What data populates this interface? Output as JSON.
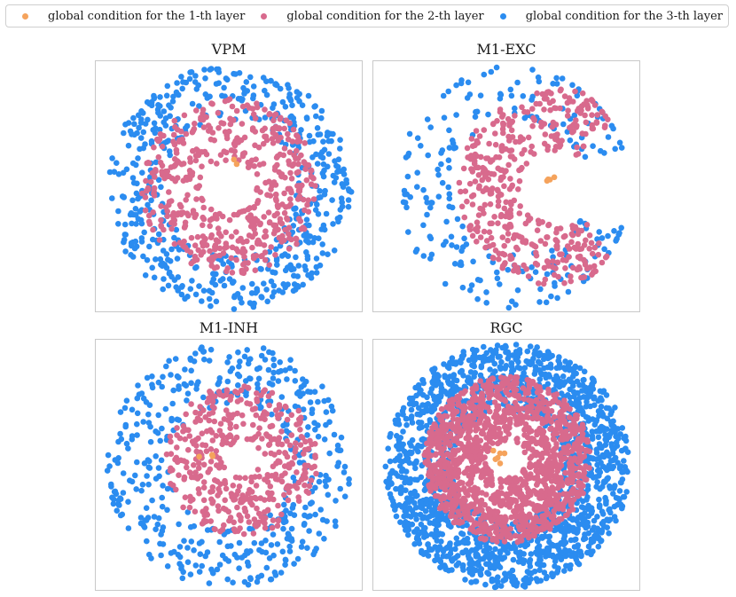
{
  "colors": {
    "layer1": "#f5a35c",
    "layer2": "#d86a8d",
    "layer3": "#2b8cf0"
  },
  "legend": [
    {
      "label": "global condition for the 1-th layer",
      "color_key": "layer1"
    },
    {
      "label": "global condition for the 2-th layer",
      "color_key": "layer2"
    },
    {
      "label": "global condition for the 3-th layer",
      "color_key": "layer3"
    }
  ],
  "chart_data": [
    {
      "type": "scatter",
      "title": "VPM",
      "xlim": [
        -1,
        1
      ],
      "ylim": [
        -1,
        1
      ],
      "grid": false,
      "series": [
        {
          "name": "global condition for the 1-th layer",
          "color_key": "layer1",
          "center": [
            0.0,
            0.18
          ],
          "count": 2,
          "r_min": 0.0,
          "r_max": 0.06,
          "angle_start": 0,
          "angle_end": 360
        },
        {
          "name": "global condition for the 2-th layer",
          "color_key": "layer2",
          "center": [
            0.0,
            0.0
          ],
          "count": 520,
          "r_min": 0.22,
          "r_max": 0.72,
          "angle_start": 0,
          "angle_end": 360
        },
        {
          "name": "global condition for the 3-th layer",
          "color_key": "layer3",
          "center": [
            0.0,
            0.0
          ],
          "count": 560,
          "r_min": 0.55,
          "r_max": 1.0,
          "angle_start": 0,
          "angle_end": 360
        }
      ]
    },
    {
      "type": "scatter",
      "title": "M1-EXC",
      "xlim": [
        -1,
        1
      ],
      "ylim": [
        -1,
        1
      ],
      "grid": false,
      "series": [
        {
          "name": "global condition for the 1-th layer",
          "color_key": "layer1",
          "center": [
            0.38,
            0.05
          ],
          "count": 4,
          "r_min": 0.0,
          "r_max": 0.06,
          "angle_start": 0,
          "angle_end": 360
        },
        {
          "name": "global condition for the 2-th layer",
          "color_key": "layer2",
          "center": [
            0.4,
            0.0
          ],
          "count": 430,
          "r_min": 0.3,
          "r_max": 0.8,
          "angle_start": 50,
          "angle_end": 310
        },
        {
          "name": "global condition for the 3-th layer",
          "color_key": "layer3",
          "center": [
            0.1,
            0.0
          ],
          "count": 220,
          "r_min": 0.55,
          "r_max": 1.0,
          "angle_start": 20,
          "angle_end": 340
        }
      ]
    },
    {
      "type": "scatter",
      "title": "M1-INH",
      "xlim": [
        -1,
        1
      ],
      "ylim": [
        -1,
        1
      ],
      "grid": false,
      "series": [
        {
          "name": "global condition for the 1-th layer",
          "color_key": "layer1",
          "center": [
            -0.2,
            0.05
          ],
          "count": 3,
          "r_min": 0.0,
          "r_max": 0.07,
          "angle_start": 0,
          "angle_end": 360
        },
        {
          "name": "global condition for the 2-th layer",
          "color_key": "layer2",
          "center": [
            0.1,
            0.05
          ],
          "count": 420,
          "r_min": 0.15,
          "r_max": 0.62,
          "angle_start": 0,
          "angle_end": 360
        },
        {
          "name": "global condition for the 3-th layer",
          "color_key": "layer3",
          "center": [
            0.0,
            0.0
          ],
          "count": 460,
          "r_min": 0.5,
          "r_max": 1.0,
          "angle_start": 0,
          "angle_end": 360
        }
      ]
    },
    {
      "type": "scatter",
      "title": "RGC",
      "xlim": [
        -1,
        1
      ],
      "ylim": [
        -1,
        1
      ],
      "grid": false,
      "series": [
        {
          "name": "global condition for the 1-th layer",
          "color_key": "layer1",
          "center": [
            -0.08,
            0.08
          ],
          "count": 6,
          "r_min": 0.0,
          "r_max": 0.08,
          "angle_start": 0,
          "angle_end": 360
        },
        {
          "name": "global condition for the 2-th layer",
          "color_key": "layer2",
          "center": [
            0.0,
            0.05
          ],
          "count": 1400,
          "r_min": 0.15,
          "r_max": 0.68,
          "angle_start": 0,
          "angle_end": 360
        },
        {
          "name": "global condition for the 3-th layer",
          "color_key": "layer3",
          "center": [
            0.0,
            0.0
          ],
          "count": 1700,
          "r_min": 0.45,
          "r_max": 1.0,
          "angle_start": 0,
          "angle_end": 360
        }
      ]
    }
  ]
}
